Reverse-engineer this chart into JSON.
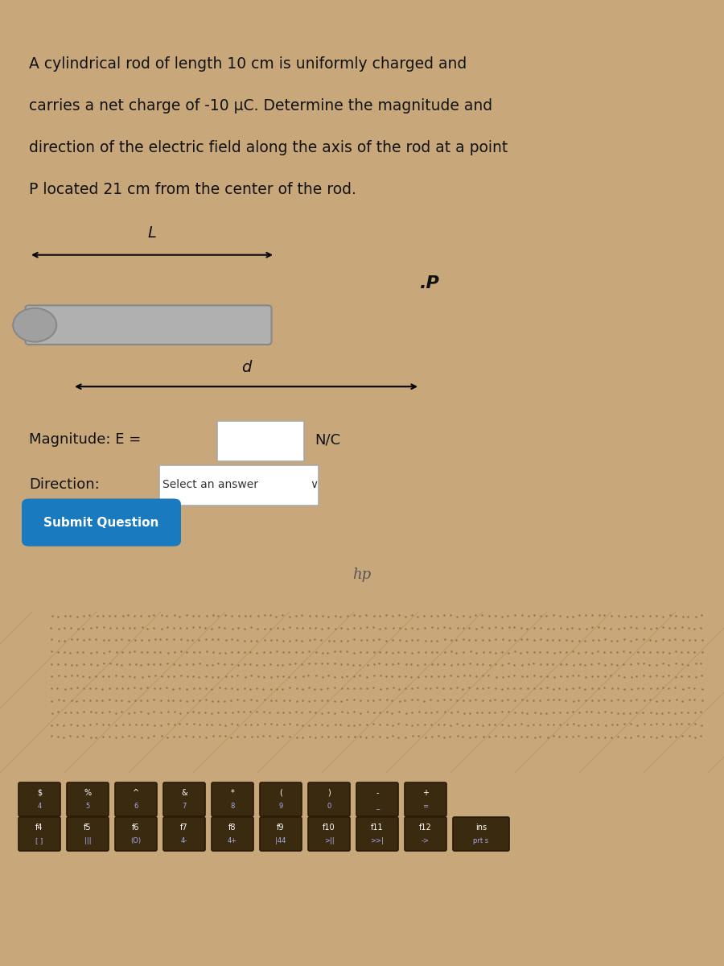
{
  "screen_bg": "#d4d4d4",
  "problem_text_line1": "A cylindrical rod of length 10 cm is uniformly charged and",
  "problem_text_line2": "carries a net charge of -10 μC. Determine the magnitude and",
  "problem_text_line3": "direction of the electric field along the axis of the rod at a point",
  "problem_text_line4": "P located 21 cm from the center of the rod.",
  "L_label": "L",
  "d_label": "d",
  "P_label": ".P",
  "magnitude_label": "Magnitude: E =",
  "nc_label": "N/C",
  "direction_label": "Direction:",
  "select_answer": "Select an answer",
  "submit_label": "Submit Question",
  "submit_btn_color": "#1a7abf",
  "submit_btn_text_color": "#ffffff",
  "rod_fill_color": "#b0b0b0",
  "rod_border_color": "#888888",
  "rod_left_circle_color": "#a0a0a0",
  "text_color": "#111111",
  "input_box_color": "#ffffff",
  "input_box_border": "#aaaaaa",
  "select_box_color": "#ffffff",
  "select_box_border": "#aaaaaa",
  "laptop_bezel_color": "#111111",
  "laptop_body_color": "#c8a87a",
  "keyboard_bg": "#b89060",
  "hp_logo_color": "#555555",
  "speaker_dot_color": "#9a7040"
}
